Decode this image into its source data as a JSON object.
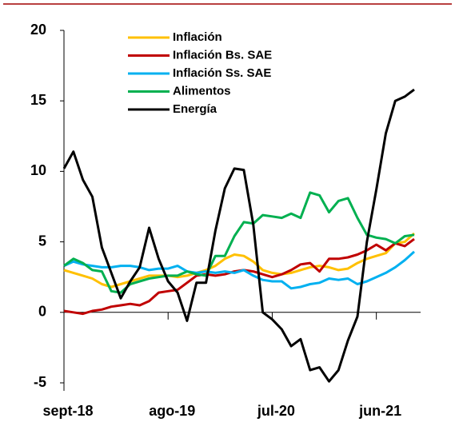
{
  "chart_data": {
    "type": "line",
    "categories": [
      "sept-18",
      null,
      null,
      null,
      null,
      null,
      null,
      null,
      null,
      null,
      null,
      "ago-19",
      null,
      null,
      null,
      null,
      null,
      null,
      null,
      null,
      null,
      null,
      "jul-20",
      null,
      null,
      null,
      null,
      null,
      null,
      null,
      null,
      null,
      null,
      "jun-21",
      null,
      null,
      null,
      null
    ],
    "series": [
      {
        "name": "Inflación",
        "color": "#ffc000",
        "values": [
          3.0,
          2.8,
          2.6,
          2.4,
          2.0,
          1.8,
          2.0,
          2.2,
          2.4,
          2.6,
          2.6,
          2.6,
          2.5,
          2.6,
          2.8,
          3.0,
          3.3,
          3.8,
          4.1,
          4.0,
          3.6,
          3.0,
          2.8,
          2.7,
          2.8,
          3.0,
          3.2,
          3.3,
          3.2,
          3.0,
          3.1,
          3.5,
          3.8,
          4.0,
          4.2,
          4.9,
          5.0,
          5.6
        ]
      },
      {
        "name": "Inflación Bs. SAE",
        "color": "#c00000",
        "values": [
          0.1,
          0.0,
          -0.1,
          0.1,
          0.2,
          0.4,
          0.5,
          0.6,
          0.5,
          0.8,
          1.4,
          1.5,
          1.6,
          2.1,
          2.6,
          2.7,
          2.6,
          2.7,
          2.9,
          3.0,
          2.9,
          2.7,
          2.5,
          2.7,
          3.0,
          3.4,
          3.5,
          2.9,
          3.8,
          3.8,
          3.9,
          4.1,
          4.4,
          4.8,
          4.4,
          4.9,
          4.7,
          5.2
        ]
      },
      {
        "name": "Inflación Ss. SAE",
        "color": "#00b0f0",
        "values": [
          3.3,
          3.6,
          3.4,
          3.3,
          3.2,
          3.2,
          3.3,
          3.3,
          3.2,
          3.0,
          3.1,
          3.1,
          3.3,
          2.9,
          2.8,
          2.9,
          2.8,
          2.9,
          2.8,
          3.0,
          2.6,
          2.3,
          2.2,
          2.2,
          1.7,
          1.8,
          2.0,
          2.1,
          2.4,
          2.3,
          2.4,
          2.0,
          2.2,
          2.5,
          2.8,
          3.2,
          3.7,
          4.3
        ]
      },
      {
        "name": "Alimentos",
        "color": "#00b050",
        "values": [
          3.3,
          3.8,
          3.5,
          3.0,
          2.9,
          1.5,
          1.4,
          2.0,
          2.2,
          2.4,
          2.5,
          2.6,
          2.6,
          2.9,
          2.7,
          2.6,
          4.0,
          4.0,
          5.4,
          6.4,
          6.3,
          6.9,
          6.8,
          6.7,
          7.0,
          6.7,
          8.5,
          8.3,
          7.1,
          7.9,
          8.1,
          6.7,
          5.5,
          5.3,
          5.2,
          4.9,
          5.4,
          5.5
        ]
      },
      {
        "name": "Energía",
        "color": "#000000",
        "values": [
          10.2,
          11.4,
          9.4,
          8.2,
          4.6,
          2.8,
          1.0,
          2.2,
          3.2,
          6.0,
          3.8,
          2.2,
          1.4,
          -0.6,
          2.1,
          2.1,
          5.8,
          8.8,
          10.2,
          10.1,
          6.2,
          0.0,
          -0.5,
          -1.2,
          -2.4,
          -1.9,
          -4.1,
          -3.9,
          -4.9,
          -4.1,
          -2.0,
          -0.3,
          5.0,
          8.7,
          12.7,
          15.0,
          15.3,
          15.8
        ]
      }
    ],
    "ylim": [
      -5,
      20
    ],
    "yticks": [
      -5,
      0,
      5,
      10,
      15,
      20
    ],
    "legend": "upper left"
  }
}
